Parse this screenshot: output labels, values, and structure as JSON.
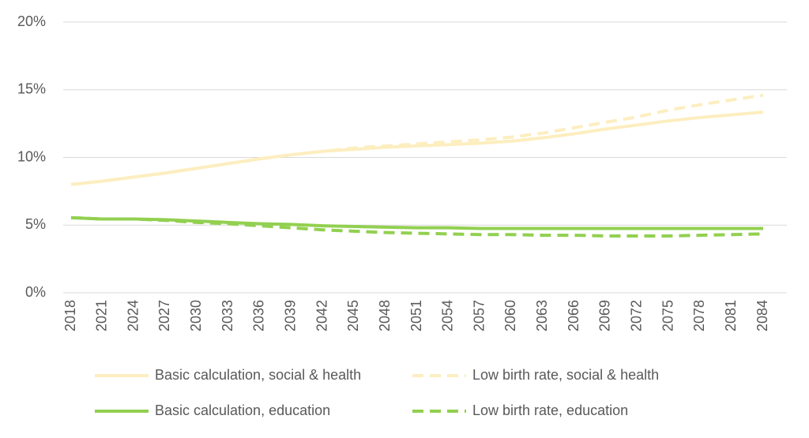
{
  "chart_data": {
    "type": "line",
    "categories": [
      "2018",
      "2021",
      "2024",
      "2027",
      "2030",
      "2033",
      "2036",
      "2039",
      "2042",
      "2045",
      "2048",
      "2051",
      "2054",
      "2057",
      "2060",
      "2063",
      "2066",
      "2069",
      "2072",
      "2075",
      "2078",
      "2081",
      "2084"
    ],
    "series": [
      {
        "name": "Basic calculation, social & health",
        "color": "#fdeec0",
        "dash": false,
        "values": [
          8.0,
          8.25,
          8.55,
          8.85,
          9.2,
          9.55,
          9.9,
          10.2,
          10.45,
          10.6,
          10.75,
          10.85,
          10.95,
          11.05,
          11.2,
          11.45,
          11.75,
          12.1,
          12.4,
          12.7,
          12.95,
          13.15,
          13.35
        ]
      },
      {
        "name": "Low birth rate, social & health",
        "color": "#fdeec0",
        "dash": true,
        "values": [
          8.0,
          8.25,
          8.55,
          8.85,
          9.2,
          9.55,
          9.9,
          10.2,
          10.45,
          10.7,
          10.85,
          11.0,
          11.15,
          11.3,
          11.5,
          11.8,
          12.2,
          12.6,
          13.0,
          13.5,
          13.9,
          14.25,
          14.6
        ]
      },
      {
        "name": "Basic calculation, education",
        "color": "#92d050",
        "dash": false,
        "values": [
          5.55,
          5.45,
          5.45,
          5.4,
          5.3,
          5.2,
          5.1,
          5.05,
          4.95,
          4.9,
          4.85,
          4.8,
          4.8,
          4.75,
          4.75,
          4.75,
          4.75,
          4.75,
          4.75,
          4.75,
          4.75,
          4.75,
          4.75
        ]
      },
      {
        "name": "Low birth rate, education",
        "color": "#92d050",
        "dash": true,
        "values": [
          5.55,
          5.45,
          5.45,
          5.35,
          5.2,
          5.1,
          4.95,
          4.8,
          4.65,
          4.55,
          4.45,
          4.4,
          4.35,
          4.3,
          4.3,
          4.25,
          4.25,
          4.2,
          4.2,
          4.2,
          4.25,
          4.3,
          4.35
        ]
      }
    ],
    "ylim": [
      0,
      20
    ],
    "yticks": [
      {
        "value": 0,
        "label": "0%"
      },
      {
        "value": 5,
        "label": "5%"
      },
      {
        "value": 10,
        "label": "10%"
      },
      {
        "value": 15,
        "label": "15%"
      },
      {
        "value": 20,
        "label": "20%"
      }
    ],
    "grid": true,
    "legend": "bottom"
  }
}
